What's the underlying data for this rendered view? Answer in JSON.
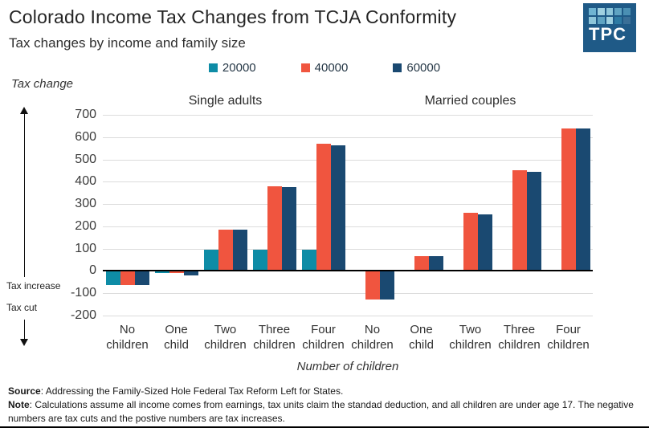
{
  "header": {
    "title": "Colorado Income Tax Changes from TCJA Conformity",
    "subtitle": "Tax changes by income and family size"
  },
  "logo": {
    "text": "TPC",
    "bg": "#1f5a87",
    "squares": [
      "#6fb4d2",
      "#9fd0e0",
      "#8ec6da",
      "#5fa3c2",
      "#4a8fb3",
      "#8ec6da",
      "#5fa3c2",
      "#9fd0e0",
      "#2e7ba4",
      "#3a6f97"
    ]
  },
  "legend": [
    {
      "label": "20000",
      "color": "#0e8ca6"
    },
    {
      "label": "40000",
      "color": "#f0553f"
    },
    {
      "label": "60000",
      "color": "#1a4971"
    }
  ],
  "axis_annotations": {
    "y_label": "Tax change",
    "increase": "Tax increase",
    "cut": "Tax cut"
  },
  "chart_data": {
    "type": "bar",
    "title": "Colorado Income Tax Changes from TCJA Conformity",
    "subtitle": "Tax changes by income and family size",
    "panel_titles": [
      "Single adults",
      "Married couples"
    ],
    "xlabel": "Number of children",
    "ylabel": "Tax change",
    "ylim": [
      -200,
      700
    ],
    "ytick_step": 100,
    "grid": true,
    "legend_position": "top",
    "categories": [
      "No children",
      "One child",
      "Two children",
      "Three children",
      "Four children",
      "No children",
      "One child",
      "Two children",
      "Three children",
      "Four children"
    ],
    "group_labels": [
      "Single adults",
      "Single adults",
      "Single adults",
      "Single adults",
      "Single adults",
      "Married couples",
      "Married couples",
      "Married couples",
      "Married couples",
      "Married couples"
    ],
    "series": [
      {
        "name": "20000",
        "color": "#0e8ca6",
        "values": [
          -60,
          -5,
          95,
          95,
          95,
          0,
          0,
          0,
          0,
          0
        ]
      },
      {
        "name": "40000",
        "color": "#f0553f",
        "values": [
          -60,
          -5,
          187,
          380,
          570,
          -125,
          65,
          260,
          450,
          640
        ]
      },
      {
        "name": "60000",
        "color": "#1a4971",
        "values": [
          -60,
          -15,
          185,
          375,
          565,
          -125,
          65,
          255,
          445,
          640
        ]
      }
    ]
  },
  "footer": {
    "source_label": "Source",
    "source_text": ": Addressing the Family-Sized Hole Federal Tax Reform Left for States.",
    "note_label": "Note",
    "note_text": ": Calculations assume all income comes from earnings, tax units claim the standad deduction, and all children are under age 17. The negative numbers are tax cuts and the postive numbers are tax increases."
  }
}
